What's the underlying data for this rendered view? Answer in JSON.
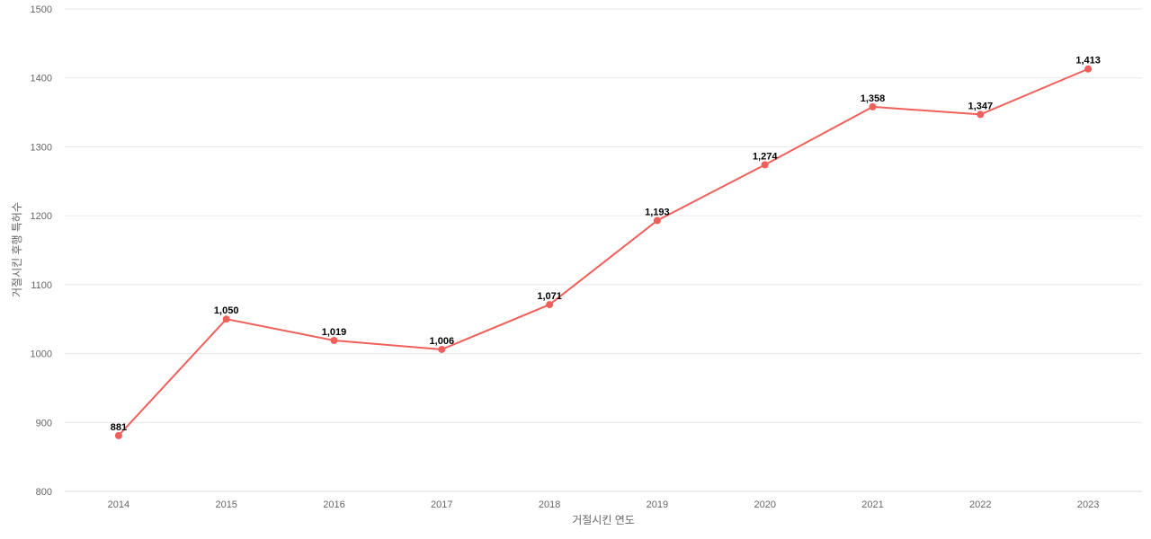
{
  "chart_data": {
    "type": "line",
    "title": "",
    "xlabel": "거절시킨 연도",
    "ylabel": "거절시킨 후행 특허수",
    "x": [
      "2014",
      "2015",
      "2016",
      "2017",
      "2018",
      "2019",
      "2020",
      "2021",
      "2022",
      "2023"
    ],
    "series": [
      {
        "values": [
          881,
          1050,
          1019,
          1006,
          1071,
          1193,
          1274,
          1358,
          1347,
          1413
        ],
        "labels": [
          "881",
          "1,050",
          "1,019",
          "1,006",
          "1,071",
          "1,193",
          "1,274",
          "1,358",
          "1,347",
          "1,413"
        ],
        "color": "#f0605a"
      }
    ],
    "ylim": [
      800,
      1500
    ],
    "yticks": [
      "800",
      "900",
      "1000",
      "1100",
      "1200",
      "1300",
      "1400",
      "1500"
    ],
    "grid": true,
    "legend": "none"
  }
}
